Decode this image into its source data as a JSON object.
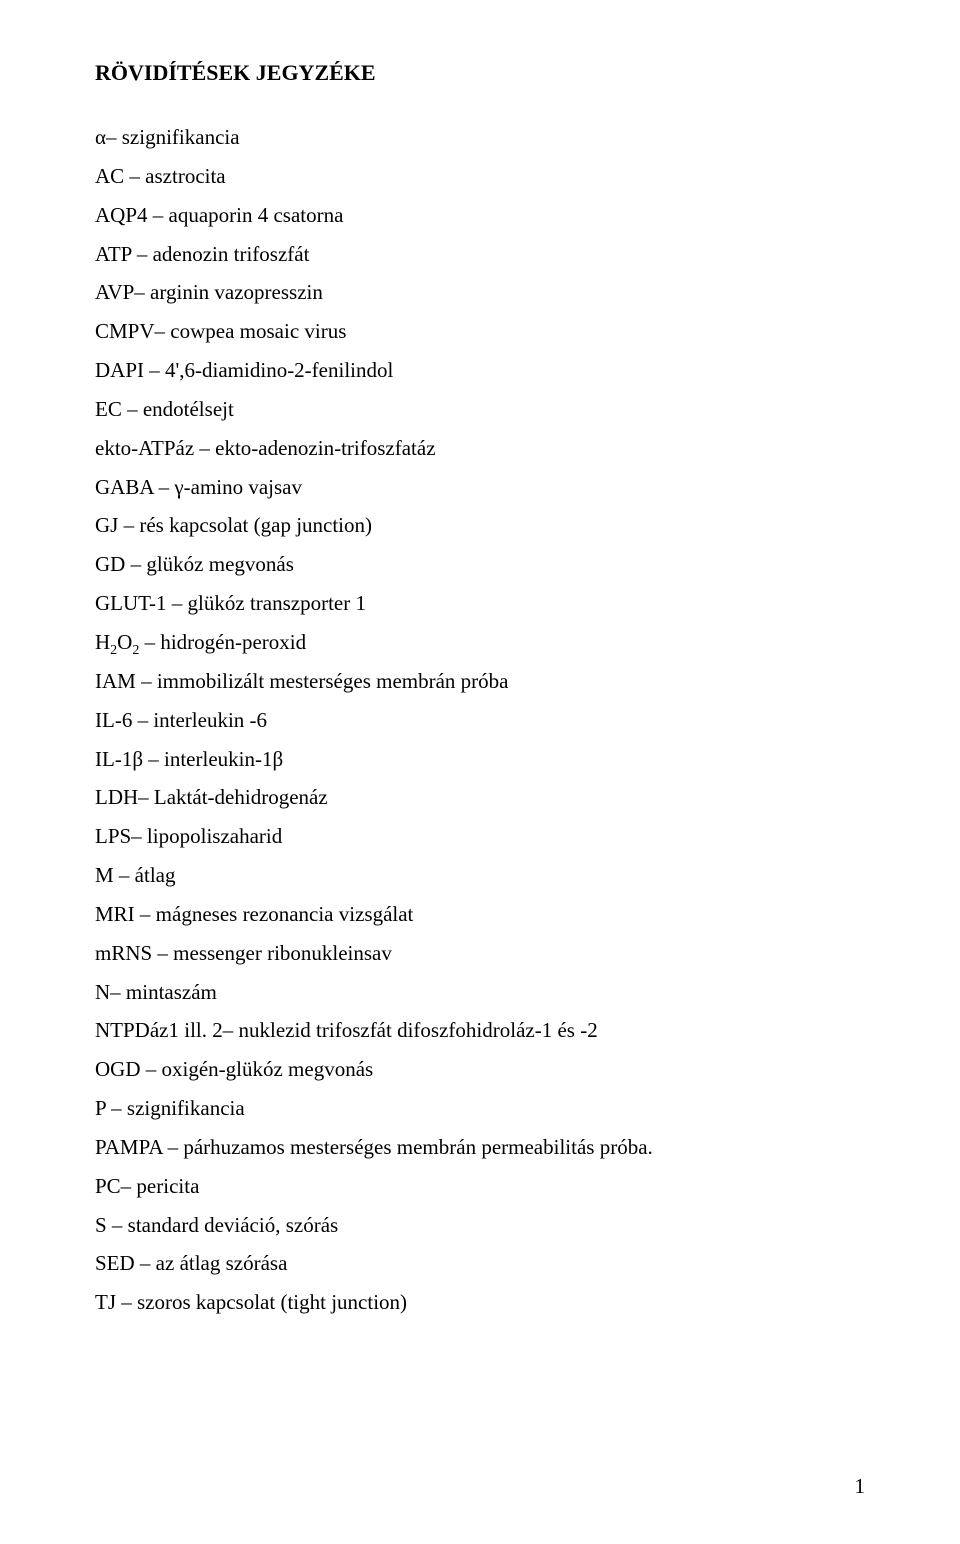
{
  "title": "RÖVIDÍTÉSEK JEGYZÉKE",
  "items": [
    {
      "label": "α– szignifikancia"
    },
    {
      "label": "AC – asztrocita"
    },
    {
      "label": "AQP4 – aquaporin 4 csatorna"
    },
    {
      "label": "ATP – adenozin trifoszfát"
    },
    {
      "label": "AVP– arginin vazopresszin"
    },
    {
      "label": "CMPV– cowpea mosaic virus"
    },
    {
      "label": "DAPI – 4',6-diamidino-2-fenilindol"
    },
    {
      "label": "EC – endotélsejt"
    },
    {
      "label": "ekto-ATPáz – ekto-adenozin-trifoszfatáz"
    },
    {
      "label": "GABA – γ-amino vajsav"
    },
    {
      "label": "GJ – rés kapcsolat (gap junction)"
    },
    {
      "label": "GD – glükóz megvonás"
    },
    {
      "label": "GLUT-1 – glükóz transzporter 1"
    },
    {
      "label": "H₂O₂ – hidrogén-peroxid",
      "html": "H<span class=\"sub\">2</span>O<span class=\"sub\">2</span> – hidrogén-peroxid"
    },
    {
      "label": "IAM – immobilizált mesterséges membrán próba"
    },
    {
      "label": "IL-6 – interleukin -6"
    },
    {
      "label": "IL-1β – interleukin-1β"
    },
    {
      "label": "LDH– Laktát-dehidrogenáz"
    },
    {
      "label": "LPS– lipopoliszaharid"
    },
    {
      "label": "M – átlag"
    },
    {
      "label": "MRI – mágneses rezonancia vizsgálat"
    },
    {
      "label": "mRNS – messenger ribonukleinsav"
    },
    {
      "label": "N– mintaszám"
    },
    {
      "label": "NTPDáz1 ill. 2– nuklezid trifoszfát difoszfohidroláz-1 és -2"
    },
    {
      "label": "OGD – oxigén-glükóz megvonás"
    },
    {
      "label": "P – szignifikancia"
    },
    {
      "label": "PAMPA – párhuzamos mesterséges membrán permeabilitás próba."
    },
    {
      "label": "PC– pericita"
    },
    {
      "label": "S – standard deviáció, szórás"
    },
    {
      "label": "SED – az átlag szórása"
    },
    {
      "label": "TJ – szoros kapcsolat (tight junction)"
    }
  ],
  "pageNumber": "1",
  "style": {
    "background_color": "#ffffff",
    "text_color": "#000000",
    "font_family": "Times New Roman",
    "title_fontsize": 22,
    "body_fontsize": 21,
    "line_height": 1.85
  }
}
